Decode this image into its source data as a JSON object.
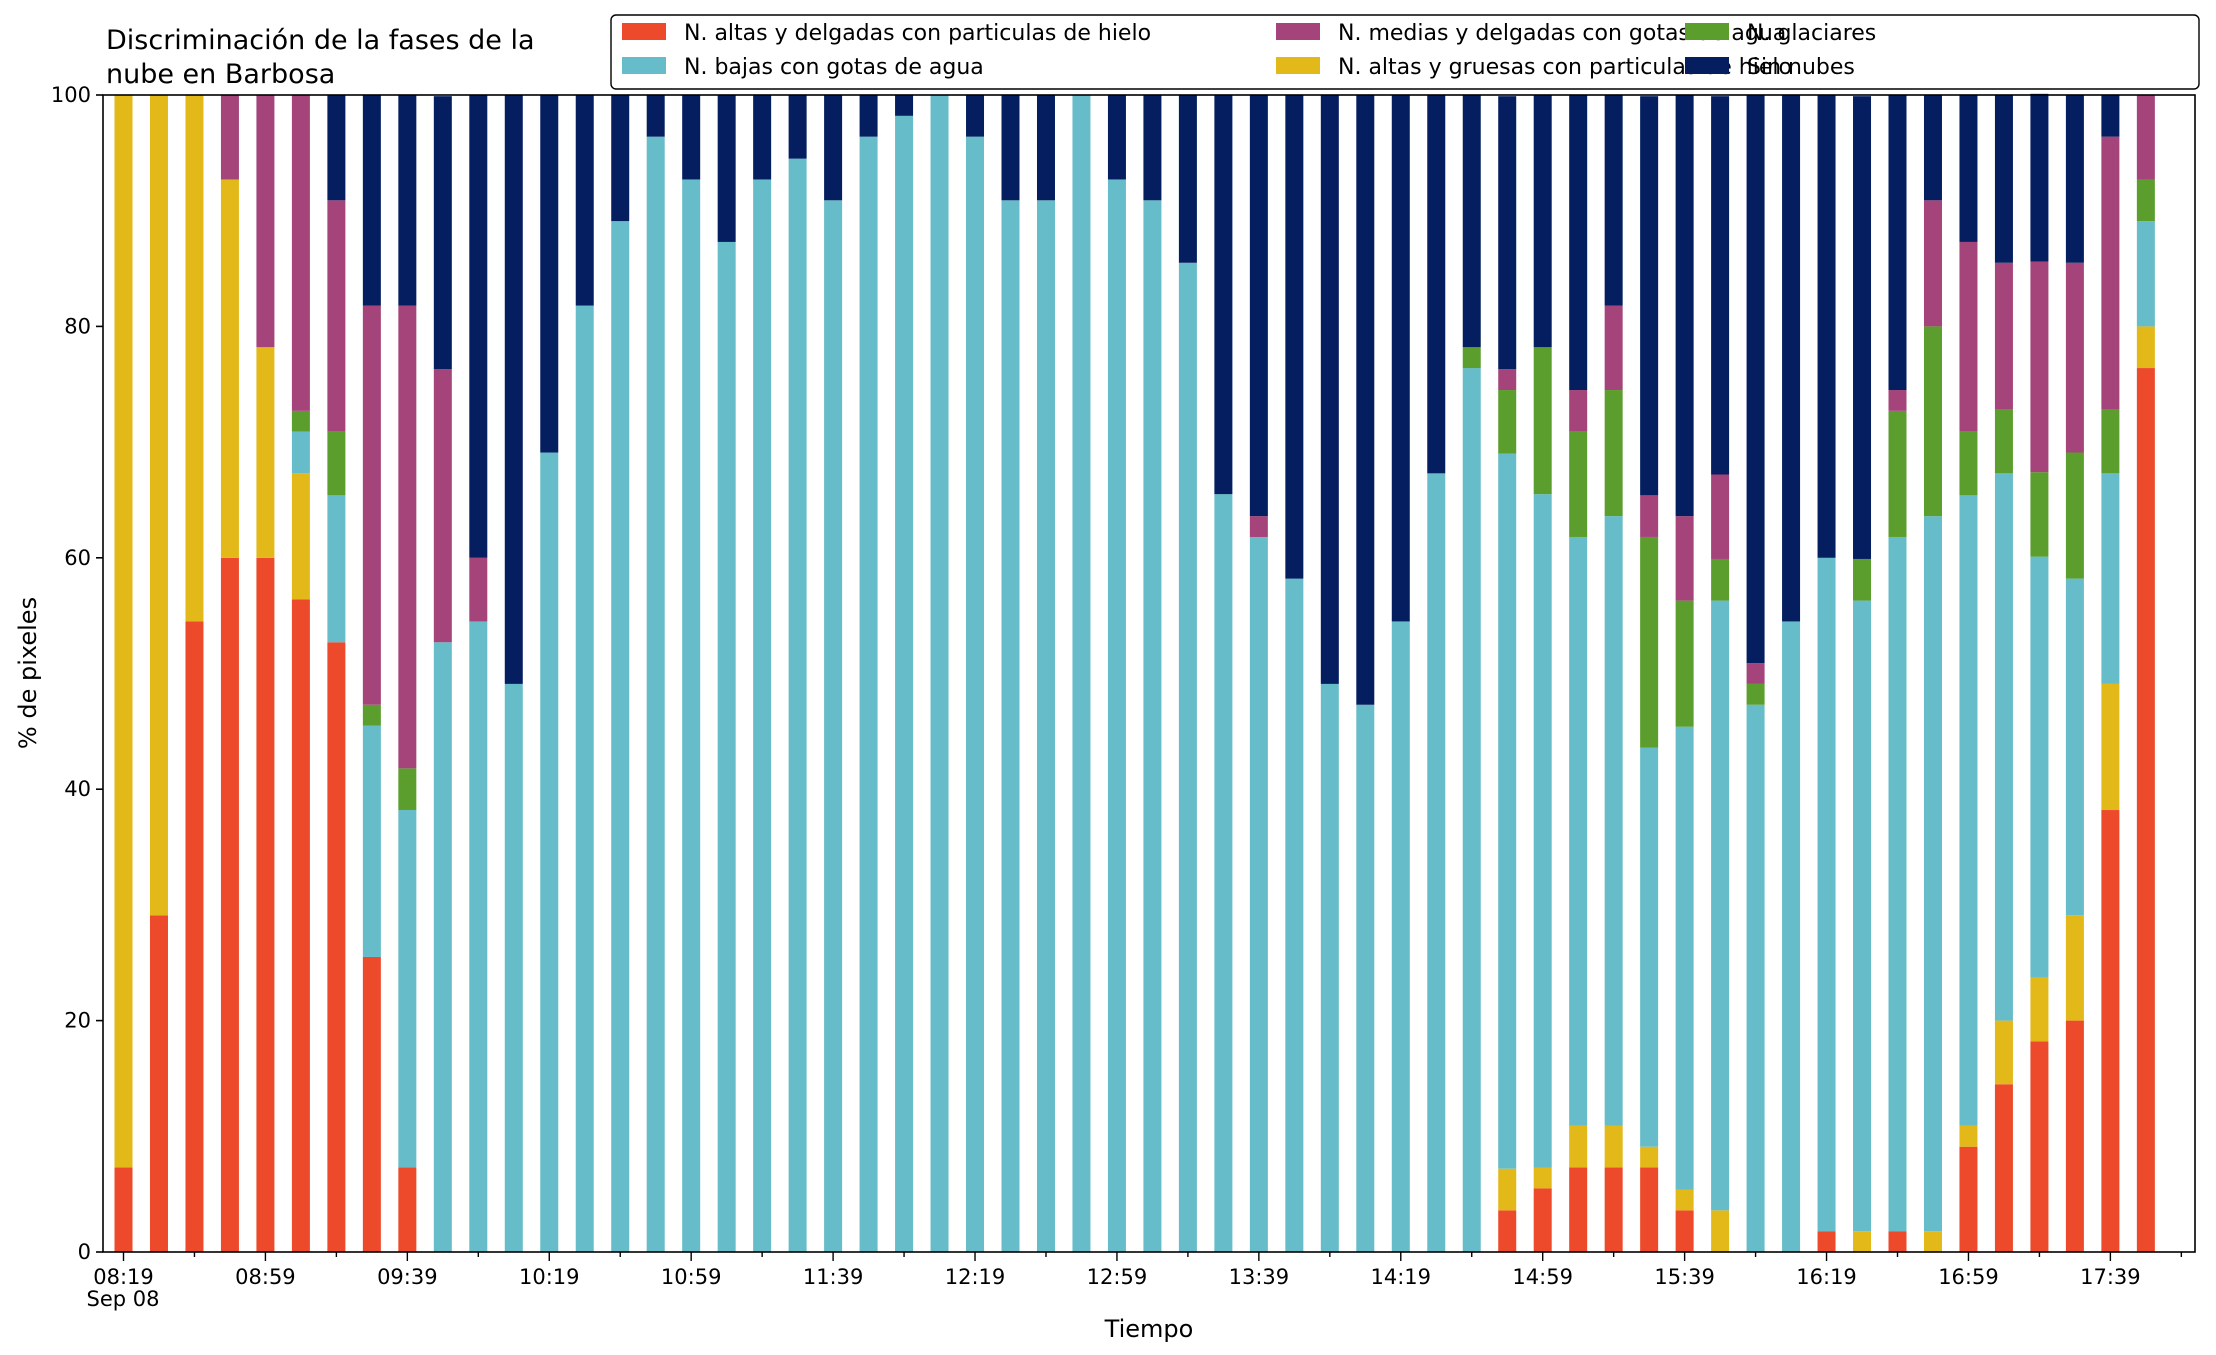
{
  "chart_data": {
    "type": "bar",
    "stacked": true,
    "title": [
      "Discriminación de la fases de la",
      "nube en Barbosa"
    ],
    "xlabel": "Tiempo",
    "ylabel": "% de pixeles",
    "ylim": [
      0,
      100
    ],
    "yticks": [
      "0",
      "20",
      "40",
      "60",
      "80",
      "100"
    ],
    "xtick_labels": [
      "08:19",
      "08:59",
      "09:39",
      "10:19",
      "10:59",
      "11:39",
      "12:19",
      "12:59",
      "13:39",
      "14:19",
      "14:59",
      "15:39",
      "16:19",
      "16:59",
      "17:39"
    ],
    "date_label": "Sep 08",
    "legend_position": "top-right",
    "grid": false,
    "categories": [
      "08:19",
      "08:29",
      "08:39",
      "08:49",
      "08:59",
      "09:09",
      "09:19",
      "09:29",
      "09:39",
      "09:49",
      "09:59",
      "10:09",
      "10:19",
      "10:29",
      "10:39",
      "10:49",
      "10:59",
      "11:09",
      "11:19",
      "11:29",
      "11:39",
      "11:49",
      "11:59",
      "12:09",
      "12:19",
      "12:29",
      "12:39",
      "12:49",
      "12:59",
      "13:09",
      "13:19",
      "13:29",
      "13:39",
      "13:49",
      "13:59",
      "14:09",
      "14:19",
      "14:29",
      "14:39",
      "14:49",
      "14:59",
      "15:09",
      "15:19",
      "15:29",
      "15:39",
      "15:49",
      "15:59",
      "16:09",
      "16:19",
      "16:29",
      "16:39",
      "16:49",
      "16:59",
      "17:09",
      "17:19",
      "17:29",
      "17:39",
      "17:49"
    ],
    "series": [
      {
        "name": "N. altas y delgadas con particulas de hielo",
        "color": "#ed4a2b",
        "values": [
          7.3,
          29.1,
          54.5,
          60,
          60,
          56.4,
          52.7,
          25.5,
          7.3,
          0,
          0,
          0,
          0,
          0,
          0,
          0,
          0,
          0,
          0,
          0,
          0,
          0,
          0,
          0,
          0,
          0,
          0,
          0,
          0,
          0,
          0,
          0,
          0,
          0,
          0,
          0,
          0,
          0,
          0,
          3.6,
          5.5,
          7.3,
          7.3,
          7.3,
          3.6,
          0,
          0,
          0,
          1.8,
          0,
          1.8,
          0,
          9.1,
          14.5,
          18.2,
          20,
          38.2,
          76.4
        ]
      },
      {
        "name": "N. altas y gruesas con particulas de hielo",
        "color": "#e3b919",
        "values": [
          92.7,
          70.9,
          45.5,
          32.7,
          18.2,
          10.9,
          0,
          0,
          0,
          0,
          0,
          0,
          0,
          0,
          0,
          0,
          0,
          0,
          0,
          0,
          0,
          0,
          0,
          0,
          0,
          0,
          0,
          0,
          0,
          0,
          0,
          0,
          0,
          0,
          0,
          0,
          0,
          0,
          0,
          3.6,
          1.8,
          3.6,
          3.6,
          1.8,
          1.8,
          3.6,
          0,
          0,
          0,
          1.8,
          0,
          1.8,
          1.8,
          5.5,
          5.5,
          9.1,
          10.9,
          3.6
        ]
      },
      {
        "name": "N. bajas con gotas de agua",
        "color": "#66bcc8",
        "values": [
          0,
          0,
          0,
          0,
          0,
          3.6,
          12.7,
          20,
          30.9,
          52.7,
          54.5,
          49.1,
          69.1,
          81.8,
          89.1,
          96.4,
          92.7,
          87.3,
          92.7,
          94.5,
          90.9,
          96.4,
          98.2,
          100,
          96.4,
          90.9,
          90.9,
          100,
          92.7,
          90.9,
          85.5,
          65.5,
          61.8,
          58.2,
          49.1,
          47.3,
          54.5,
          67.3,
          76.4,
          61.8,
          58.2,
          50.9,
          52.7,
          34.5,
          40,
          52.7,
          47.3,
          54.5,
          58.2,
          54.5,
          60,
          61.8,
          54.5,
          47.3,
          36.4,
          29.1,
          18.2,
          9.1
        ]
      },
      {
        "name": "N. glaciares",
        "color": "#5b9e2d",
        "values": [
          0,
          0,
          0,
          0,
          0,
          1.8,
          5.5,
          1.8,
          3.6,
          0,
          0,
          0,
          0,
          0,
          0,
          0,
          0,
          0,
          0,
          0,
          0,
          0,
          0,
          0,
          0,
          0,
          0,
          0,
          0,
          0,
          0,
          0,
          0,
          0,
          0,
          0,
          0,
          0,
          1.8,
          5.5,
          12.7,
          9.1,
          10.9,
          18.2,
          10.9,
          3.6,
          1.8,
          0,
          0,
          3.6,
          10.9,
          16.4,
          5.5,
          5.5,
          7.3,
          10.9,
          5.5,
          3.6
        ]
      },
      {
        "name": "N. medias y delgadas con gotas de agua",
        "color": "#a4447a",
        "values": [
          0,
          0,
          0,
          7.3,
          21.8,
          27.3,
          20,
          34.5,
          40,
          23.6,
          5.5,
          0,
          0,
          0,
          0,
          0,
          0,
          0,
          0,
          0,
          0,
          0,
          0,
          0,
          0,
          0,
          0,
          0,
          0,
          0,
          0,
          0,
          1.8,
          0,
          0,
          0,
          0,
          0,
          0,
          1.8,
          0,
          3.6,
          7.3,
          3.6,
          7.3,
          7.3,
          1.8,
          0,
          0,
          0,
          1.8,
          10.9,
          16.4,
          12.7,
          18.2,
          16.4,
          23.6,
          7.3
        ]
      },
      {
        "name": "Sin nubes",
        "color": "#041e5f",
        "values": [
          0,
          0,
          0,
          0,
          0,
          0,
          9.1,
          18.2,
          18.2,
          23.6,
          40,
          50.9,
          30.9,
          18.2,
          10.9,
          3.6,
          7.3,
          12.7,
          7.3,
          5.5,
          9.1,
          3.6,
          1.8,
          0,
          3.6,
          9.1,
          9.1,
          0,
          7.3,
          9.1,
          14.5,
          34.5,
          36.4,
          41.8,
          50.9,
          52.7,
          45.5,
          32.7,
          21.8,
          23.6,
          21.8,
          25.5,
          18.2,
          34.5,
          36.4,
          32.7,
          49.1,
          45.5,
          40,
          40,
          25.5,
          9.1,
          12.7,
          14.5,
          14.5,
          14.5,
          3.6,
          0
        ]
      }
    ]
  },
  "legend_order": [
    0,
    2,
    4,
    1,
    3,
    5
  ]
}
